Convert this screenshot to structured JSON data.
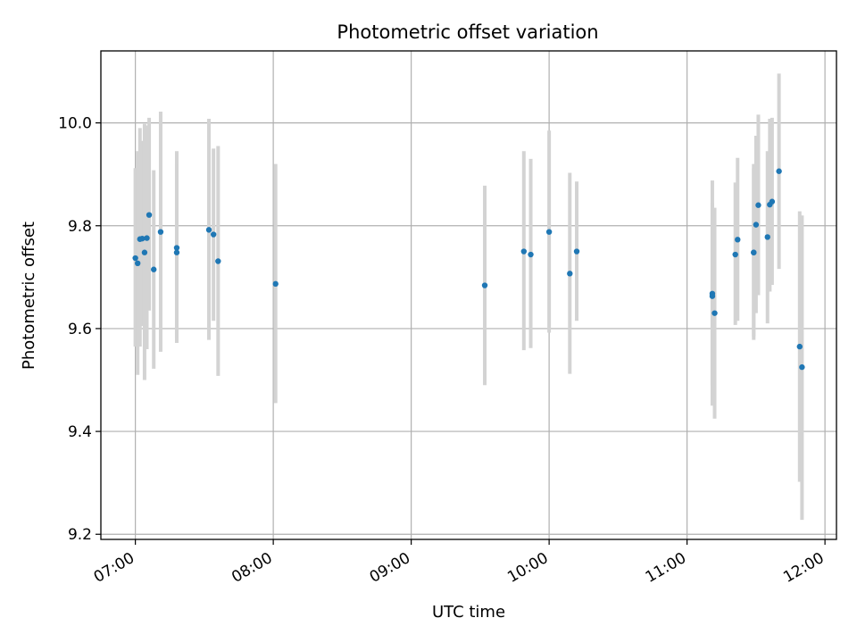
{
  "chart_data": {
    "type": "scatter",
    "title": "Photometric offset variation",
    "xlabel": "UTC time",
    "ylabel": "Photometric offset",
    "x_ticks": [
      "07:00",
      "08:00",
      "09:00",
      "10:00",
      "11:00",
      "12:00"
    ],
    "y_ticks": [
      "9.2",
      "9.4",
      "9.6",
      "9.8",
      "10.0"
    ],
    "xlim": [
      "06:45",
      "12:05"
    ],
    "ylim": [
      9.19,
      10.14
    ],
    "grid": true,
    "colors": {
      "marker": "#1f77b4",
      "errorbar": "#d3d3d3",
      "grid": "#b0b0b0"
    },
    "points": [
      {
        "t": "07:00",
        "y": 9.737,
        "lo": 9.565,
        "hi": 9.912
      },
      {
        "t": "07:01",
        "y": 9.727,
        "lo": 9.51,
        "hi": 9.945
      },
      {
        "t": "07:02",
        "y": 9.774,
        "lo": 9.565,
        "hi": 9.99
      },
      {
        "t": "07:03",
        "y": 9.775,
        "lo": 9.605,
        "hi": 9.965
      },
      {
        "t": "07:04",
        "y": 9.748,
        "lo": 9.5,
        "hi": 9.998
      },
      {
        "t": "07:05",
        "y": 9.776,
        "lo": 9.56,
        "hi": 9.995
      },
      {
        "t": "07:06",
        "y": 9.821,
        "lo": 9.635,
        "hi": 10.01
      },
      {
        "t": "07:08",
        "y": 9.715,
        "lo": 9.522,
        "hi": 9.908
      },
      {
        "t": "07:11",
        "y": 9.788,
        "lo": 9.555,
        "hi": 10.022
      },
      {
        "t": "07:18",
        "y": 9.757,
        "lo": 9.572,
        "hi": 9.945
      },
      {
        "t": "07:18",
        "y": 9.748,
        "lo": 9.58,
        "hi": 9.92
      },
      {
        "t": "07:32",
        "y": 9.792,
        "lo": 9.578,
        "hi": 10.008
      },
      {
        "t": "07:34",
        "y": 9.783,
        "lo": 9.615,
        "hi": 9.95
      },
      {
        "t": "07:36",
        "y": 9.731,
        "lo": 9.508,
        "hi": 9.955
      },
      {
        "t": "08:01",
        "y": 9.687,
        "lo": 9.455,
        "hi": 9.92
      },
      {
        "t": "09:32",
        "y": 9.684,
        "lo": 9.49,
        "hi": 9.878
      },
      {
        "t": "09:49",
        "y": 9.75,
        "lo": 9.558,
        "hi": 9.945
      },
      {
        "t": "09:52",
        "y": 9.744,
        "lo": 9.562,
        "hi": 9.93
      },
      {
        "t": "10:00",
        "y": 9.788,
        "lo": 9.592,
        "hi": 9.985
      },
      {
        "t": "10:09",
        "y": 9.707,
        "lo": 9.512,
        "hi": 9.903
      },
      {
        "t": "10:12",
        "y": 9.75,
        "lo": 9.615,
        "hi": 9.886
      },
      {
        "t": "11:11",
        "y": 9.668,
        "lo": 9.45,
        "hi": 9.888
      },
      {
        "t": "11:11",
        "y": 9.663,
        "lo": 9.49,
        "hi": 9.845
      },
      {
        "t": "11:12",
        "y": 9.63,
        "lo": 9.425,
        "hi": 9.835
      },
      {
        "t": "11:21",
        "y": 9.744,
        "lo": 9.607,
        "hi": 9.884
      },
      {
        "t": "11:22",
        "y": 9.773,
        "lo": 9.615,
        "hi": 9.932
      },
      {
        "t": "11:29",
        "y": 9.748,
        "lo": 9.578,
        "hi": 9.92
      },
      {
        "t": "11:29",
        "y": 9.748,
        "lo": 9.585,
        "hi": 9.912
      },
      {
        "t": "11:30",
        "y": 9.802,
        "lo": 9.63,
        "hi": 9.975
      },
      {
        "t": "11:31",
        "y": 9.84,
        "lo": 9.665,
        "hi": 10.016
      },
      {
        "t": "11:35",
        "y": 9.778,
        "lo": 9.61,
        "hi": 9.945
      },
      {
        "t": "11:36",
        "y": 9.841,
        "lo": 9.672,
        "hi": 10.008
      },
      {
        "t": "11:37",
        "y": 9.847,
        "lo": 9.685,
        "hi": 10.01
      },
      {
        "t": "11:40",
        "y": 9.906,
        "lo": 9.716,
        "hi": 10.096
      },
      {
        "t": "11:49",
        "y": 9.565,
        "lo": 9.302,
        "hi": 9.828
      },
      {
        "t": "11:50",
        "y": 9.525,
        "lo": 9.228,
        "hi": 9.82
      }
    ]
  }
}
